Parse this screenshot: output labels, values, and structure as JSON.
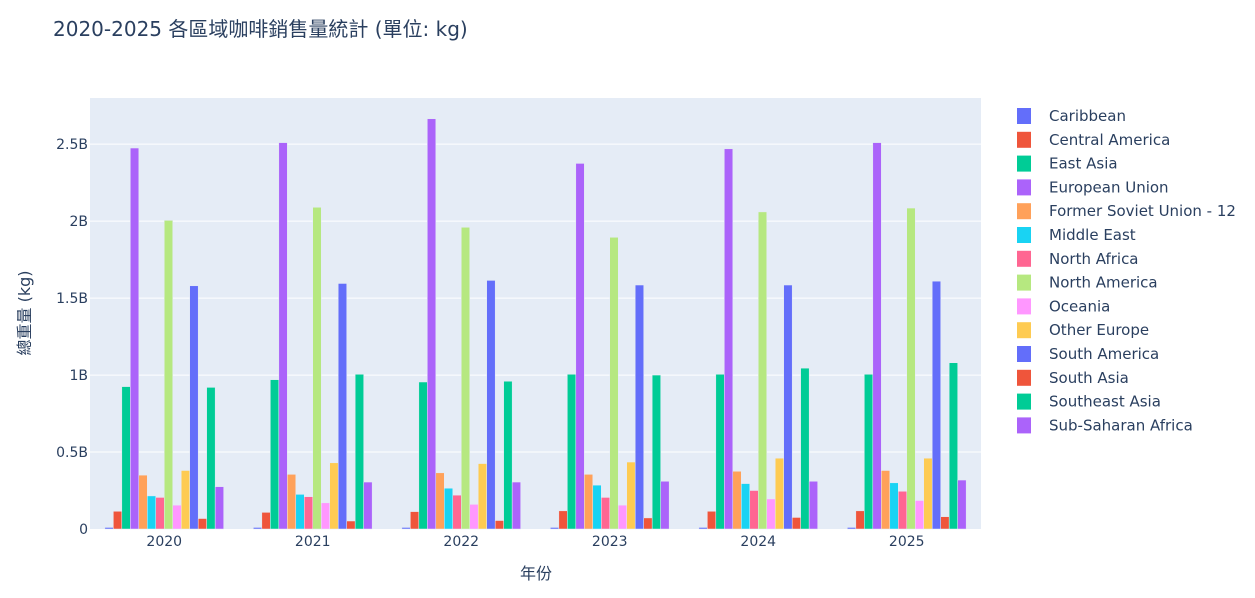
{
  "chart_data": {
    "type": "bar",
    "title": "2020-2025 各區域咖啡銷售量統計 (單位: kg)",
    "xlabel": "年份",
    "ylabel": "總重量 (kg)",
    "categories": [
      "2020",
      "2021",
      "2022",
      "2023",
      "2024",
      "2025"
    ],
    "ylim": [
      0,
      2800000000
    ],
    "yticks": [
      {
        "value": 0,
        "label": "0"
      },
      {
        "value": 500000000,
        "label": "0.5B"
      },
      {
        "value": 1000000000,
        "label": "1B"
      },
      {
        "value": 1500000000,
        "label": "1.5B"
      },
      {
        "value": 2000000000,
        "label": "2B"
      },
      {
        "value": 2500000000,
        "label": "2.5B"
      }
    ],
    "grid": true,
    "legend_position": "right",
    "plot_background": "#e5ecf6",
    "series": [
      {
        "name": "Caribbean",
        "color": "#636efa",
        "values": [
          10000000,
          10000000,
          10000000,
          10000000,
          10000000,
          10000000
        ]
      },
      {
        "name": "Central America",
        "color": "#EF553B",
        "values": [
          115000000,
          108000000,
          113000000,
          118000000,
          115000000,
          118000000
        ]
      },
      {
        "name": "East Asia",
        "color": "#00cc96",
        "values": [
          925000000,
          970000000,
          955000000,
          1005000000,
          1005000000,
          1005000000
        ]
      },
      {
        "name": "European Union",
        "color": "#ab63fa",
        "values": [
          2475000000,
          2510000000,
          2665000000,
          2375000000,
          2470000000,
          2510000000
        ]
      },
      {
        "name": "Former Soviet Union - 12",
        "color": "#FFA15A",
        "values": [
          350000000,
          355000000,
          365000000,
          355000000,
          375000000,
          380000000
        ]
      },
      {
        "name": "Middle East",
        "color": "#19d3f3",
        "values": [
          215000000,
          225000000,
          265000000,
          285000000,
          295000000,
          300000000
        ]
      },
      {
        "name": "North Africa",
        "color": "#FF6692",
        "values": [
          205000000,
          210000000,
          220000000,
          205000000,
          250000000,
          245000000
        ]
      },
      {
        "name": "North America",
        "color": "#B6E880",
        "values": [
          2005000000,
          2090000000,
          1960000000,
          1895000000,
          2060000000,
          2085000000
        ]
      },
      {
        "name": "Oceania",
        "color": "#FF97FF",
        "values": [
          155000000,
          170000000,
          160000000,
          155000000,
          195000000,
          185000000
        ]
      },
      {
        "name": "Other Europe",
        "color": "#FECB52",
        "values": [
          380000000,
          430000000,
          425000000,
          435000000,
          460000000,
          460000000
        ]
      },
      {
        "name": "South America",
        "color": "#636efa",
        "values": [
          1580000000,
          1595000000,
          1615000000,
          1585000000,
          1585000000,
          1610000000
        ]
      },
      {
        "name": "South Asia",
        "color": "#EF553B",
        "values": [
          68000000,
          52000000,
          55000000,
          72000000,
          75000000,
          80000000
        ]
      },
      {
        "name": "Southeast Asia",
        "color": "#00cc96",
        "values": [
          920000000,
          1005000000,
          960000000,
          1000000000,
          1045000000,
          1080000000
        ]
      },
      {
        "name": "Sub-Saharan Africa",
        "color": "#ab63fa",
        "values": [
          275000000,
          305000000,
          305000000,
          310000000,
          310000000,
          318000000
        ]
      }
    ]
  }
}
